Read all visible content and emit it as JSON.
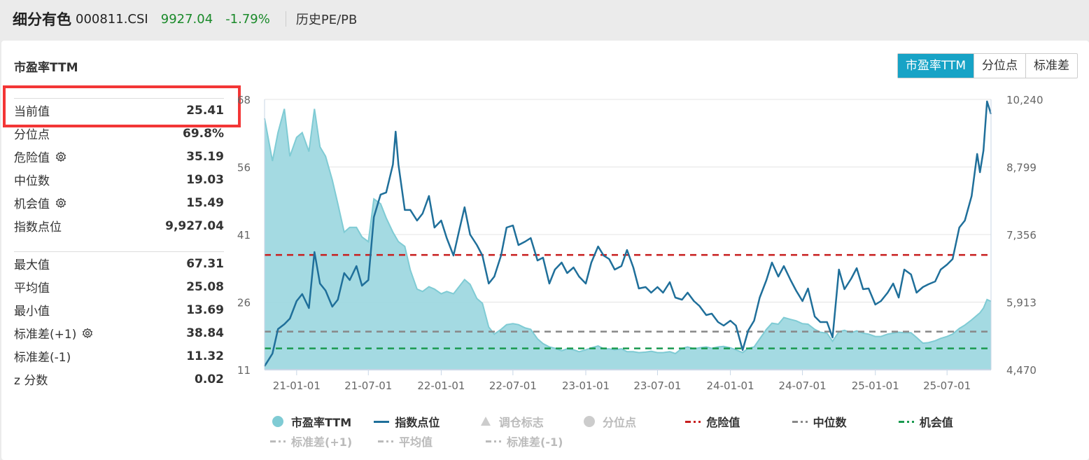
{
  "header": {
    "name": "细分有色",
    "code": "000811.CSI",
    "price": "9927.04",
    "change": "-1.79%",
    "section": "历史PE/PB"
  },
  "panel": {
    "title": "市盈率TTM",
    "tabs": [
      {
        "label": "市盈率TTM",
        "active": true
      },
      {
        "label": "分位点",
        "active": false
      },
      {
        "label": "标准差",
        "active": false
      }
    ]
  },
  "stats": {
    "group1": [
      {
        "label": "当前值",
        "value": "25.41",
        "highlighted": true
      },
      {
        "label": "分位点",
        "value": "69.8%"
      },
      {
        "label": "危险值",
        "value": "35.19",
        "gear": true
      },
      {
        "label": "中位数",
        "value": "19.03"
      },
      {
        "label": "机会值",
        "value": "15.49",
        "gear": true
      },
      {
        "label": "指数点位",
        "value": "9,927.04"
      }
    ],
    "group2": [
      {
        "label": "最大值",
        "value": "67.31"
      },
      {
        "label": "平均值",
        "value": "25.08"
      },
      {
        "label": "最小值",
        "value": "13.69"
      },
      {
        "label": "标准差(+1)",
        "value": "38.84",
        "gear": true
      },
      {
        "label": "标准差(-1)",
        "value": "11.32"
      },
      {
        "label": "z 分数",
        "value": "0.02"
      }
    ]
  },
  "colors": {
    "pe_fill": "#9fd8e0",
    "pe_line": "#7fcbd4",
    "index_line": "#1f6f9a",
    "danger": "#c81e1e",
    "median": "#888888",
    "opportunity": "#1a9a50",
    "active_tab": "#17a3c6",
    "highlight_box": "#f33636",
    "price_green": "#1a8a2a"
  },
  "chart_data": {
    "type": "area+line",
    "left_axis": {
      "ticks": [
        "11",
        "26",
        "41",
        "56",
        "68"
      ],
      "range": [
        11,
        68
      ]
    },
    "right_axis": {
      "ticks": [
        "4,470",
        "5,913",
        "7,356",
        "8,799",
        "10,240"
      ],
      "range": [
        4470,
        10240
      ]
    },
    "x_ticks": [
      "21-01-01",
      "21-07-01",
      "22-01-01",
      "22-07-01",
      "23-01-01",
      "23-07-01",
      "24-01-01",
      "24-07-01",
      "25-01-01",
      "25-07-01"
    ],
    "x_range": [
      "2020-10-12",
      "2025-10-20"
    ],
    "reference_lines": {
      "danger": 35.19,
      "median": 19.03,
      "opportunity": 15.49
    },
    "dates": [
      "2020-10-12",
      "2020-11-01",
      "2020-11-15",
      "2020-12-01",
      "2020-12-15",
      "2021-01-01",
      "2021-01-15",
      "2021-02-01",
      "2021-02-15",
      "2021-03-01",
      "2021-03-15",
      "2021-04-01",
      "2021-04-15",
      "2021-05-01",
      "2021-05-15",
      "2021-06-01",
      "2021-06-15",
      "2021-07-01",
      "2021-07-15",
      "2021-08-01",
      "2021-08-15",
      "2021-09-01",
      "2021-09-08",
      "2021-09-15",
      "2021-10-01",
      "2021-10-15",
      "2021-11-01",
      "2021-11-15",
      "2021-12-01",
      "2021-12-15",
      "2022-01-01",
      "2022-01-15",
      "2022-02-01",
      "2022-02-15",
      "2022-03-01",
      "2022-03-15",
      "2022-04-01",
      "2022-04-15",
      "2022-05-01",
      "2022-05-15",
      "2022-06-01",
      "2022-06-15",
      "2022-07-01",
      "2022-07-15",
      "2022-08-01",
      "2022-08-15",
      "2022-09-01",
      "2022-09-15",
      "2022-10-01",
      "2022-10-15",
      "2022-11-01",
      "2022-11-15",
      "2022-12-01",
      "2022-12-15",
      "2023-01-01",
      "2023-01-15",
      "2023-02-01",
      "2023-02-15",
      "2023-03-01",
      "2023-03-15",
      "2023-04-01",
      "2023-04-15",
      "2023-05-01",
      "2023-05-15",
      "2023-06-01",
      "2023-06-15",
      "2023-07-01",
      "2023-07-15",
      "2023-08-01",
      "2023-08-15",
      "2023-09-01",
      "2023-09-15",
      "2023-10-01",
      "2023-10-15",
      "2023-11-01",
      "2023-11-15",
      "2023-12-01",
      "2023-12-15",
      "2024-01-01",
      "2024-01-15",
      "2024-02-01",
      "2024-02-15",
      "2024-03-01",
      "2024-03-15",
      "2024-04-01",
      "2024-04-15",
      "2024-05-01",
      "2024-05-15",
      "2024-06-01",
      "2024-06-15",
      "2024-07-01",
      "2024-07-15",
      "2024-08-01",
      "2024-08-15",
      "2024-09-01",
      "2024-09-15",
      "2024-10-01",
      "2024-10-15",
      "2024-11-01",
      "2024-11-15",
      "2024-12-01",
      "2024-12-15",
      "2025-01-01",
      "2025-01-15",
      "2025-02-01",
      "2025-02-15",
      "2025-03-01",
      "2025-03-15",
      "2025-04-01",
      "2025-04-15",
      "2025-05-01",
      "2025-05-15",
      "2025-06-01",
      "2025-06-15",
      "2025-07-01",
      "2025-07-15",
      "2025-08-01",
      "2025-08-15",
      "2025-09-01",
      "2025-09-15",
      "2025-09-22",
      "2025-10-01",
      "2025-10-10",
      "2025-10-20"
    ],
    "series": [
      {
        "name": "市盈率TTM",
        "axis": "left",
        "values": [
          64,
          55,
          61,
          66,
          56,
          60,
          61,
          57,
          66,
          58,
          56,
          51,
          46,
          40,
          41,
          41,
          39,
          38,
          47,
          46,
          43,
          40,
          39,
          38,
          37,
          32,
          28,
          27.5,
          28.5,
          28,
          27,
          27.5,
          27,
          28.5,
          30,
          29,
          26,
          25,
          20,
          18.5,
          19.5,
          20.5,
          20.7,
          20.5,
          19.8,
          19.5,
          17.5,
          16.5,
          15.8,
          15.5,
          15,
          15.4,
          15.2,
          14.8,
          15.2,
          15.6,
          16,
          15.4,
          15.4,
          15.2,
          15.4,
          14.8,
          14.8,
          14.6,
          14.7,
          14.9,
          14.6,
          14.6,
          14.8,
          14.4,
          15.5,
          15.8,
          15.4,
          15.6,
          15.8,
          15.5,
          15.8,
          15.9,
          15.6,
          15.2,
          14.6,
          15.5,
          15.8,
          17.5,
          19.5,
          20.8,
          20.6,
          22,
          21.6,
          21.3,
          20.7,
          20.6,
          19.5,
          18.9,
          18.7,
          17,
          19,
          19.3,
          18.8,
          19.2,
          18.7,
          18.5,
          18,
          18,
          18.5,
          18.7,
          18.9,
          18.8,
          18.8,
          17.8,
          16.6,
          16.7,
          17.1,
          17.6,
          18,
          18.5,
          19.7,
          20.4,
          21.5,
          22.5,
          23,
          24,
          25.8,
          25.41
        ]
      },
      {
        "name": "指数点位",
        "axis": "right",
        "values": [
          4545,
          4814,
          5337,
          5442,
          5561,
          5935,
          6085,
          5786,
          6982,
          6309,
          6159,
          5816,
          5965,
          6533,
          6384,
          6683,
          6264,
          6384,
          7729,
          8208,
          8253,
          8850,
          9553,
          8850,
          7879,
          7879,
          7654,
          7804,
          8178,
          7505,
          7654,
          7281,
          6907,
          7430,
          7938,
          7355,
          7131,
          6907,
          6309,
          6458,
          6907,
          7505,
          7550,
          7131,
          7206,
          7281,
          6802,
          6862,
          6309,
          6608,
          6757,
          6533,
          6653,
          6458,
          6309,
          6757,
          7101,
          6907,
          6832,
          6608,
          6683,
          7026,
          6653,
          6204,
          6234,
          6115,
          6234,
          6115,
          6339,
          6010,
          5965,
          6115,
          5935,
          5830,
          5636,
          5666,
          5487,
          5412,
          5516,
          5412,
          4889,
          5307,
          5516,
          6010,
          6384,
          6757,
          6458,
          6683,
          6384,
          6159,
          5935,
          6204,
          5606,
          5487,
          5487,
          5158,
          6608,
          6189,
          6413,
          6638,
          6189,
          6204,
          5860,
          5935,
          6115,
          6309,
          6010,
          6608,
          6503,
          6115,
          6234,
          6294,
          6354,
          6608,
          6713,
          6832,
          7505,
          7654,
          8178,
          9075,
          8686,
          9149,
          10196,
          9927.04
        ]
      }
    ]
  },
  "legend": {
    "row1": [
      {
        "label": "市盈率TTM",
        "icon": "circle",
        "active": true
      },
      {
        "label": "指数点位",
        "icon": "line",
        "active": true
      },
      {
        "label": "调仓标志",
        "icon": "triangle",
        "active": false
      },
      {
        "label": "分位点",
        "icon": "circle",
        "active": false
      },
      {
        "label": "危险值",
        "icon": "dash-red",
        "active": true
      },
      {
        "label": "中位数",
        "icon": "dash-gray",
        "active": true
      },
      {
        "label": "机会值",
        "icon": "dash-green",
        "active": true
      }
    ],
    "row2": [
      {
        "label": "标准差(+1)",
        "icon": "dash",
        "active": false
      },
      {
        "label": "平均值",
        "icon": "dash",
        "active": false
      },
      {
        "label": "标准差(-1)",
        "icon": "dash",
        "active": false
      }
    ]
  }
}
